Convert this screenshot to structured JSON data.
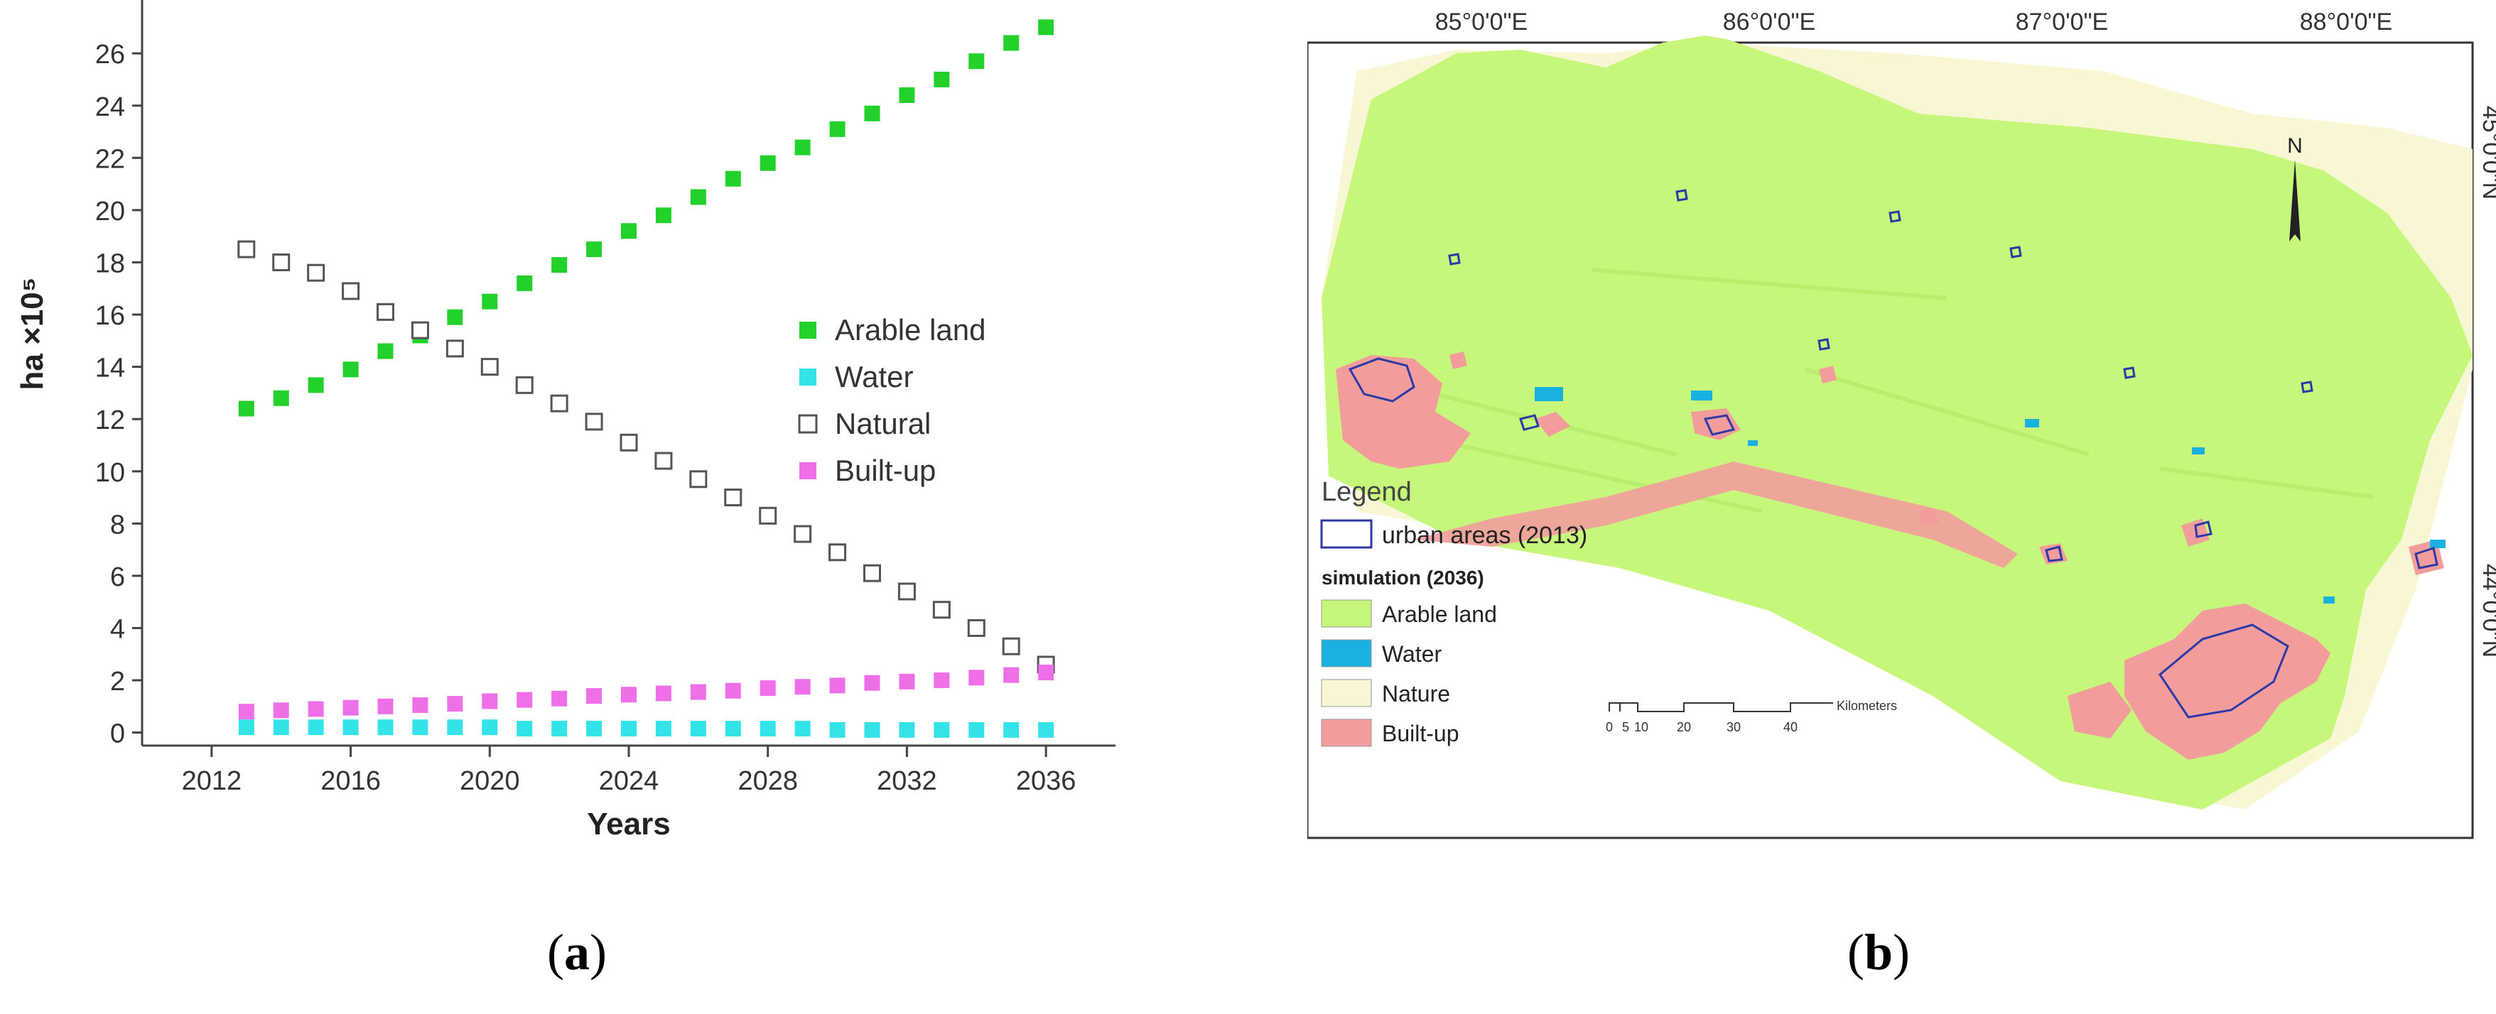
{
  "chart_data": {
    "type": "scatter",
    "xlabel": "Years",
    "ylabel": "ha ×10⁵",
    "xlim": [
      2010,
      2038
    ],
    "ylim": [
      -0.5,
      27.5
    ],
    "x_ticks": [
      2012,
      2016,
      2020,
      2024,
      2028,
      2032,
      2036
    ],
    "y_ticks": [
      0,
      2,
      4,
      6,
      8,
      10,
      12,
      14,
      16,
      18,
      20,
      22,
      24,
      26
    ],
    "legend_position": "right",
    "grid": false,
    "series": [
      {
        "name": "Arable land",
        "color": "#22d22a",
        "marker": "filled-square",
        "x": [
          2013,
          2014,
          2015,
          2016,
          2017,
          2018,
          2019,
          2020,
          2021,
          2022,
          2023,
          2024,
          2025,
          2026,
          2027,
          2028,
          2029,
          2030,
          2031,
          2032,
          2033,
          2034,
          2035,
          2036
        ],
        "y": [
          12.4,
          12.8,
          13.3,
          13.9,
          14.6,
          15.2,
          15.9,
          16.5,
          17.2,
          17.9,
          18.5,
          19.2,
          19.8,
          20.5,
          21.2,
          21.8,
          22.4,
          23.1,
          23.7,
          24.4,
          25.0,
          25.7,
          26.4,
          27.0
        ]
      },
      {
        "name": "Water",
        "color": "#33e3e8",
        "marker": "filled-square",
        "x": [
          2013,
          2014,
          2015,
          2016,
          2017,
          2018,
          2019,
          2020,
          2021,
          2022,
          2023,
          2024,
          2025,
          2026,
          2027,
          2028,
          2029,
          2030,
          2031,
          2032,
          2033,
          2034,
          2035,
          2036
        ],
        "y": [
          0.2,
          0.2,
          0.2,
          0.2,
          0.2,
          0.2,
          0.2,
          0.2,
          0.15,
          0.15,
          0.15,
          0.15,
          0.15,
          0.15,
          0.15,
          0.15,
          0.15,
          0.1,
          0.1,
          0.1,
          0.1,
          0.1,
          0.1,
          0.1
        ]
      },
      {
        "name": "Natural",
        "color": "#555555",
        "marker": "open-square",
        "x": [
          2013,
          2014,
          2015,
          2016,
          2017,
          2018,
          2019,
          2020,
          2021,
          2022,
          2023,
          2024,
          2025,
          2026,
          2027,
          2028,
          2029,
          2030,
          2031,
          2032,
          2033,
          2034,
          2035,
          2036
        ],
        "y": [
          18.5,
          18.0,
          17.6,
          16.9,
          16.1,
          15.4,
          14.7,
          14.0,
          13.3,
          12.6,
          11.9,
          11.1,
          10.4,
          9.7,
          9.0,
          8.3,
          7.6,
          6.9,
          6.1,
          5.4,
          4.7,
          4.0,
          3.3,
          2.6
        ]
      },
      {
        "name": "Built-up",
        "color": "#ee6fe8",
        "marker": "filled-square",
        "x": [
          2013,
          2014,
          2015,
          2016,
          2017,
          2018,
          2019,
          2020,
          2021,
          2022,
          2023,
          2024,
          2025,
          2026,
          2027,
          2028,
          2029,
          2030,
          2031,
          2032,
          2033,
          2034,
          2035,
          2036
        ],
        "y": [
          0.8,
          0.85,
          0.9,
          0.95,
          1.0,
          1.05,
          1.1,
          1.2,
          1.25,
          1.3,
          1.4,
          1.45,
          1.5,
          1.55,
          1.6,
          1.7,
          1.75,
          1.8,
          1.9,
          1.95,
          2.0,
          2.1,
          2.2,
          2.3
        ]
      }
    ]
  },
  "map": {
    "lon_labels": [
      "85°0'0\"E",
      "86°0'0\"E",
      "87°0'0\"E",
      "88°0'0\"E"
    ],
    "lat_labels": [
      "45°0'0\"N",
      "44°0'0\"N"
    ],
    "north_arrow": "N",
    "legend_title": "Legend",
    "legend_outline_label": "urban areas (2013)",
    "legend_subtitle": "simulation (2036)",
    "legend_items": [
      {
        "label": "Arable land",
        "color": "#c6f77a"
      },
      {
        "label": "Water",
        "color": "#1ab0e0"
      },
      {
        "label": "Nature",
        "color": "#f9f7d3"
      },
      {
        "label": "Built-up",
        "color": "#f29c9c"
      }
    ],
    "scale_bar_ticks": [
      "0",
      "5",
      "10",
      "20",
      "30",
      "40"
    ],
    "scale_bar_unit": "Kilometers",
    "outline_color": "#2d3aa6"
  },
  "captions": {
    "a": "a",
    "b": "b"
  }
}
